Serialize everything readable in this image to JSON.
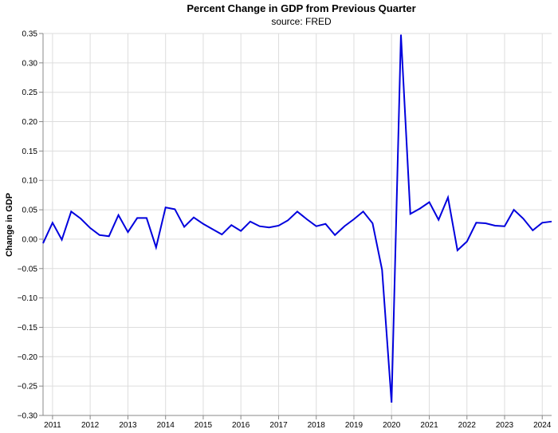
{
  "chart_data": {
    "type": "line",
    "title": "Percent Change in GDP from Previous Quarter",
    "subtitle": "source: FRED",
    "xlabel": "",
    "ylabel": "Change in GDP",
    "ylim": [
      -0.3,
      0.35
    ],
    "xlim": [
      "2010-10-01",
      "2024-04-01"
    ],
    "grid": true,
    "x_ticks": [
      "2011",
      "2012",
      "2013",
      "2014",
      "2015",
      "2016",
      "2017",
      "2018",
      "2019",
      "2020",
      "2021",
      "2022",
      "2023",
      "2024"
    ],
    "y_ticks": [
      "0.35",
      "0.30",
      "0.25",
      "0.20",
      "0.15",
      "0.10",
      "0.05",
      "0.00",
      "−0.05",
      "−0.10",
      "−0.15",
      "−0.20",
      "−0.25",
      "−0.30"
    ],
    "y_tick_values": [
      0.35,
      0.3,
      0.25,
      0.2,
      0.15,
      0.1,
      0.05,
      0.0,
      -0.05,
      -0.1,
      -0.15,
      -0.2,
      -0.25,
      -0.3
    ],
    "color": "#0000dd",
    "series": [
      {
        "x": [
          "2010-10-01",
          "2011-01-01",
          "2011-04-01",
          "2011-07-01",
          "2011-10-01",
          "2012-01-01",
          "2012-04-01",
          "2012-07-01",
          "2012-10-01",
          "2013-01-01",
          "2013-04-01",
          "2013-07-01",
          "2013-10-01",
          "2014-01-01",
          "2014-04-01",
          "2014-07-01",
          "2014-10-01",
          "2015-01-01",
          "2015-04-01",
          "2015-07-01",
          "2015-10-01",
          "2016-01-01",
          "2016-04-01",
          "2016-07-01",
          "2016-10-01",
          "2017-01-01",
          "2017-04-01",
          "2017-07-01",
          "2017-10-01",
          "2018-01-01",
          "2018-04-01",
          "2018-07-01",
          "2018-10-01",
          "2019-01-01",
          "2019-04-01",
          "2019-07-01",
          "2019-10-01",
          "2020-01-01",
          "2020-04-01",
          "2020-07-01",
          "2020-10-01",
          "2021-01-01",
          "2021-04-01",
          "2021-07-01",
          "2021-10-01",
          "2022-01-01",
          "2022-04-01",
          "2022-07-01",
          "2022-10-01",
          "2023-01-01",
          "2023-04-01",
          "2023-07-01",
          "2023-10-01",
          "2024-01-01",
          "2024-04-01"
        ],
        "values": [
          -0.007,
          0.028,
          -0.001,
          0.047,
          0.035,
          0.019,
          0.007,
          0.005,
          0.041,
          0.012,
          0.036,
          0.036,
          -0.014,
          0.054,
          0.051,
          0.021,
          0.037,
          0.026,
          0.017,
          0.008,
          0.024,
          0.014,
          0.03,
          0.022,
          0.02,
          0.023,
          0.032,
          0.047,
          0.034,
          0.022,
          0.026,
          0.007,
          0.022,
          0.034,
          0.047,
          0.027,
          -0.052,
          -0.278,
          0.348,
          0.043,
          0.052,
          0.063,
          0.033,
          0.071,
          -0.019,
          -0.004,
          0.028,
          0.027,
          0.023,
          0.022,
          0.05,
          0.035,
          0.015,
          0.028,
          0.03
        ]
      }
    ]
  }
}
